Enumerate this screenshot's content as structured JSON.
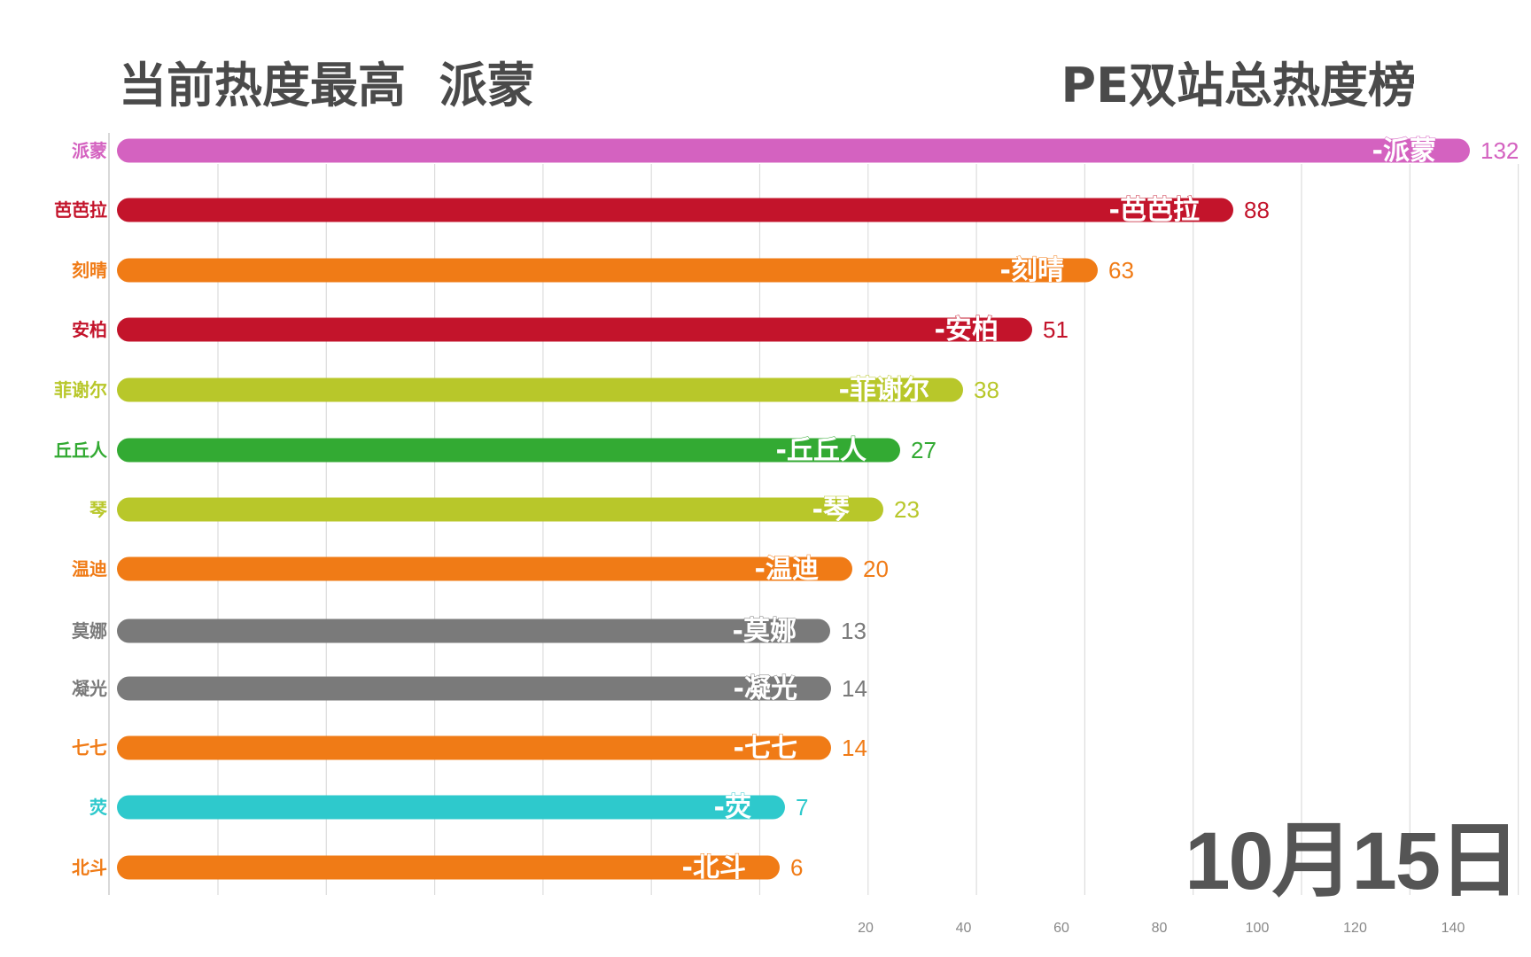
{
  "header": {
    "title_left": "当前热度最高  派蒙",
    "title_right": "PE双站总热度榜"
  },
  "date": "10月15日",
  "chart_data": {
    "type": "bar",
    "orientation": "horizontal",
    "categories": [
      "派蒙",
      "芭芭拉",
      "刻晴",
      "安柏",
      "菲谢尔",
      "丘丘人",
      "琴",
      "温迪",
      "莫娜",
      "凝光",
      "七七",
      "荧",
      "北斗"
    ],
    "values": [
      132,
      88,
      63,
      51,
      38,
      27,
      23,
      20,
      13,
      14,
      14,
      7,
      6
    ],
    "bar_labels": [
      "-派蒙",
      "-芭芭拉",
      "-刻晴",
      "-安柏",
      "-菲谢尔",
      "-丘丘人",
      "-琴",
      "-温迪",
      "-莫娜",
      "-凝光",
      "-七七",
      "-荧",
      "-北斗"
    ],
    "colors": [
      "#d462c0",
      "#c3142b",
      "#f07b16",
      "#c3142b",
      "#b8c72a",
      "#33aa33",
      "#b8c72a",
      "#f07b16",
      "#7a7a7a",
      "#7a7a7a",
      "#f07b16",
      "#2ec9cc",
      "#f07b16"
    ],
    "x_ticks": [
      "20",
      "40",
      "60",
      "80",
      "100",
      "120",
      "140"
    ],
    "grid": true
  }
}
